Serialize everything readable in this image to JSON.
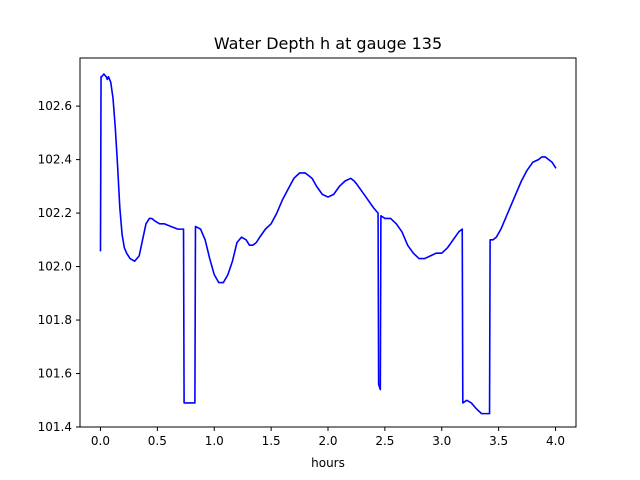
{
  "chart_data": {
    "type": "line",
    "title": "Water Depth h at gauge 135",
    "xlabel": "hours",
    "ylabel": "",
    "xlim": [
      -0.18,
      4.18
    ],
    "ylim": [
      101.4,
      102.78
    ],
    "grid": false,
    "xticks": [
      0.0,
      0.5,
      1.0,
      1.5,
      2.0,
      2.5,
      3.0,
      3.5,
      4.0
    ],
    "xtick_labels": [
      "0.0",
      "0.5",
      "1.0",
      "1.5",
      "2.0",
      "2.5",
      "3.0",
      "3.5",
      "4.0"
    ],
    "yticks": [
      101.4,
      101.6,
      101.8,
      102.0,
      102.2,
      102.4,
      102.6
    ],
    "ytick_labels": [
      "101.4",
      "101.6",
      "101.8",
      "102.0",
      "102.2",
      "102.4",
      "102.6"
    ],
    "series": [
      {
        "color": "#0000ff",
        "x": [
          0.0,
          0.005,
          0.01,
          0.03,
          0.05,
          0.06,
          0.07,
          0.09,
          0.11,
          0.13,
          0.15,
          0.17,
          0.19,
          0.21,
          0.23,
          0.26,
          0.3,
          0.34,
          0.37,
          0.4,
          0.43,
          0.45,
          0.48,
          0.52,
          0.56,
          0.62,
          0.68,
          0.73,
          0.735,
          0.78,
          0.83,
          0.835,
          0.88,
          0.92,
          0.96,
          1.0,
          1.04,
          1.08,
          1.12,
          1.16,
          1.2,
          1.24,
          1.28,
          1.31,
          1.34,
          1.37,
          1.4,
          1.45,
          1.5,
          1.55,
          1.6,
          1.65,
          1.7,
          1.75,
          1.8,
          1.83,
          1.86,
          1.9,
          1.95,
          2.0,
          2.05,
          2.1,
          2.15,
          2.2,
          2.23,
          2.25,
          2.3,
          2.35,
          2.4,
          2.44,
          2.445,
          2.46,
          2.465,
          2.5,
          2.55,
          2.6,
          2.65,
          2.7,
          2.75,
          2.8,
          2.85,
          2.9,
          2.95,
          3.0,
          3.05,
          3.1,
          3.15,
          3.18,
          3.185,
          3.22,
          3.26,
          3.3,
          3.35,
          3.4,
          3.42,
          3.425,
          3.45,
          3.48,
          3.52,
          3.56,
          3.6,
          3.65,
          3.7,
          3.75,
          3.8,
          3.85,
          3.88,
          3.91,
          3.94,
          3.97,
          3.985,
          4.0
        ],
        "y": [
          102.06,
          102.71,
          102.71,
          102.72,
          102.71,
          102.7,
          102.71,
          102.69,
          102.63,
          102.52,
          102.38,
          102.22,
          102.12,
          102.07,
          102.05,
          102.03,
          102.02,
          102.04,
          102.1,
          102.16,
          102.18,
          102.18,
          102.17,
          102.16,
          102.16,
          102.15,
          102.14,
          102.14,
          101.49,
          101.49,
          101.49,
          102.15,
          102.14,
          102.1,
          102.03,
          101.97,
          101.94,
          101.94,
          101.97,
          102.02,
          102.09,
          102.11,
          102.1,
          102.08,
          102.08,
          102.09,
          102.11,
          102.14,
          102.16,
          102.2,
          102.25,
          102.29,
          102.33,
          102.35,
          102.35,
          102.34,
          102.33,
          102.3,
          102.27,
          102.26,
          102.27,
          102.3,
          102.32,
          102.33,
          102.32,
          102.31,
          102.28,
          102.25,
          102.22,
          102.2,
          101.56,
          101.54,
          102.19,
          102.18,
          102.18,
          102.16,
          102.13,
          102.08,
          102.05,
          102.03,
          102.03,
          102.04,
          102.05,
          102.05,
          102.07,
          102.1,
          102.13,
          102.14,
          101.49,
          101.5,
          101.49,
          101.47,
          101.45,
          101.45,
          101.45,
          102.1,
          102.1,
          102.11,
          102.14,
          102.18,
          102.22,
          102.27,
          102.32,
          102.36,
          102.39,
          102.4,
          102.41,
          102.41,
          102.4,
          102.39,
          102.38,
          102.37
        ]
      }
    ]
  }
}
